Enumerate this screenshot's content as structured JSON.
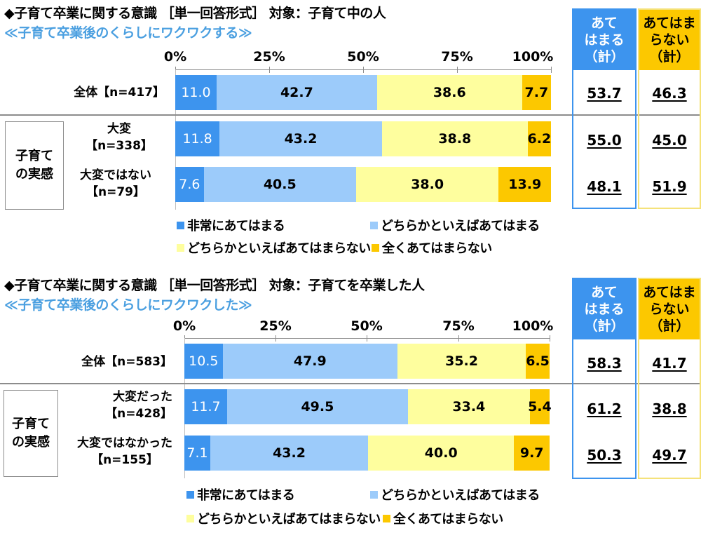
{
  "chart_data": [
    {
      "type": "bar",
      "orientation": "horizontal-stacked-100",
      "title": "◆子育て卒業に関する意識 ［単一回答形式］ 対象：子育て中の人",
      "subtitle": "≪子育て卒業後のくらしにワクワクする≫",
      "x_ticks": [
        "0%",
        "25%",
        "50%",
        "75%",
        "100%"
      ],
      "xlim": [
        0,
        100
      ],
      "group_label": "子育て\nの実感",
      "categories": [
        "全体【n=417】",
        "大変【n=338】",
        "大変ではない【n=79】"
      ],
      "series": [
        {
          "name": "非常にあてはまる",
          "color": "#3d94ee",
          "values": [
            11.0,
            11.8,
            7.6
          ]
        },
        {
          "name": "どちらかといえばあてはまる",
          "color": "#9ccbfa",
          "values": [
            42.7,
            43.2,
            40.5
          ]
        },
        {
          "name": "どちらかといえばあてはまらない",
          "color": "#fefe9e",
          "values": [
            38.6,
            38.8,
            38.0
          ]
        },
        {
          "name": "全くあてはまらない",
          "color": "#fcc800",
          "values": [
            7.7,
            6.2,
            13.9
          ]
        }
      ],
      "summary": {
        "positive_header": "あて\nはまる\n（計）",
        "negative_header": "あてはま\nらない\n（計）",
        "positive": [
          53.7,
          55.0,
          48.1
        ],
        "negative": [
          46.3,
          45.0,
          51.9
        ]
      },
      "legend_position": "bottom"
    },
    {
      "type": "bar",
      "orientation": "horizontal-stacked-100",
      "title": "◆子育て卒業に関する意識 ［単一回答形式］ 対象：子育てを卒業した人",
      "subtitle": "≪子育て卒業後のくらしにワクワクした≫",
      "x_ticks": [
        "0%",
        "25%",
        "50%",
        "75%",
        "100%"
      ],
      "xlim": [
        0,
        100
      ],
      "group_label": "子育て\nの実感",
      "categories": [
        "全体【n=583】",
        "大変だった【n=428】",
        "大変ではなかった【n=155】"
      ],
      "series": [
        {
          "name": "非常にあてはまる",
          "color": "#3d94ee",
          "values": [
            10.5,
            11.7,
            7.1
          ]
        },
        {
          "name": "どちらかといえばあてはまる",
          "color": "#9ccbfa",
          "values": [
            47.9,
            49.5,
            43.2
          ]
        },
        {
          "name": "どちらかといえばあてはまらない",
          "color": "#fefe9e",
          "values": [
            35.2,
            33.4,
            40.0
          ]
        },
        {
          "name": "全くあてはまらない",
          "color": "#fcc800",
          "values": [
            6.5,
            5.4,
            9.7
          ]
        }
      ],
      "summary": {
        "positive_header": "あて\nはまる\n（計）",
        "negative_header": "あてはま\nらない\n（計）",
        "positive": [
          58.3,
          61.2,
          50.3
        ],
        "negative": [
          41.7,
          38.8,
          49.7
        ]
      },
      "legend_position": "bottom"
    }
  ],
  "top": {
    "title": "◆子育て卒業に関する意識 ［単一回答形式］ 対象：子育て中の人",
    "subtitle": "≪子育て卒業後のくらしにワクワクする≫",
    "ticks": [
      "0%",
      "25%",
      "50%",
      "75%",
      "100%"
    ],
    "group_label_1": "子育て",
    "group_label_2": "の実感",
    "rows": [
      {
        "label_1": "全体【n=417】",
        "label_2": "",
        "values": [
          "11.0",
          "42.7",
          "38.6",
          "7.7"
        ],
        "pct": [
          11.0,
          42.7,
          38.6,
          7.7
        ],
        "pos": "53.7",
        "neg": "46.3"
      },
      {
        "label_1": "大変",
        "label_2": "【n=338】",
        "values": [
          "11.8",
          "43.2",
          "38.8",
          "6.2"
        ],
        "pct": [
          11.8,
          43.2,
          38.8,
          6.2
        ],
        "pos": "55.0",
        "neg": "45.0"
      },
      {
        "label_1": "大変ではない",
        "label_2": "【n=79】",
        "values": [
          "7.6",
          "40.5",
          "38.0",
          "13.9"
        ],
        "pct": [
          7.6,
          40.5,
          38.0,
          13.9
        ],
        "pos": "48.1",
        "neg": "51.9"
      }
    ],
    "sum_pos_header": [
      "あて",
      "はまる",
      "（計）"
    ],
    "sum_neg_header": [
      "あてはま",
      "らない",
      "（計）"
    ]
  },
  "bottom": {
    "title": "◆子育て卒業に関する意識 ［単一回答形式］ 対象：子育てを卒業した人",
    "subtitle": "≪子育て卒業後のくらしにワクワクした≫",
    "ticks": [
      "0%",
      "25%",
      "50%",
      "75%",
      "100%"
    ],
    "group_label_1": "子育て",
    "group_label_2": "の実感",
    "rows": [
      {
        "label_1": "全体【n=583】",
        "label_2": "",
        "values": [
          "10.5",
          "47.9",
          "35.2",
          "6.5"
        ],
        "pct": [
          10.5,
          47.9,
          35.2,
          6.5
        ],
        "pos": "58.3",
        "neg": "41.7"
      },
      {
        "label_1": "大変だった",
        "label_2": "【n=428】",
        "values": [
          "11.7",
          "49.5",
          "33.4",
          "5.4"
        ],
        "pct": [
          11.7,
          49.5,
          33.4,
          5.4
        ],
        "pos": "61.2",
        "neg": "38.8"
      },
      {
        "label_1": "大変ではなかった",
        "label_2": "【n=155】",
        "values": [
          "7.1",
          "43.2",
          "40.0",
          "9.7"
        ],
        "pct": [
          7.1,
          43.2,
          40.0,
          9.7
        ],
        "pos": "50.3",
        "neg": "49.7"
      }
    ],
    "sum_pos_header": [
      "あて",
      "はまる",
      "（計）"
    ],
    "sum_neg_header": [
      "あてはま",
      "らない",
      "（計）"
    ]
  },
  "legend": [
    {
      "label": "非常にあてはまる",
      "color": "#3d94ee"
    },
    {
      "label": "どちらかといえばあてはまる",
      "color": "#9ccbfa"
    },
    {
      "label": "どちらかといえばあてはまらない",
      "color": "#fefe9e"
    },
    {
      "label": "全くあてはまらない",
      "color": "#fcc800"
    }
  ]
}
